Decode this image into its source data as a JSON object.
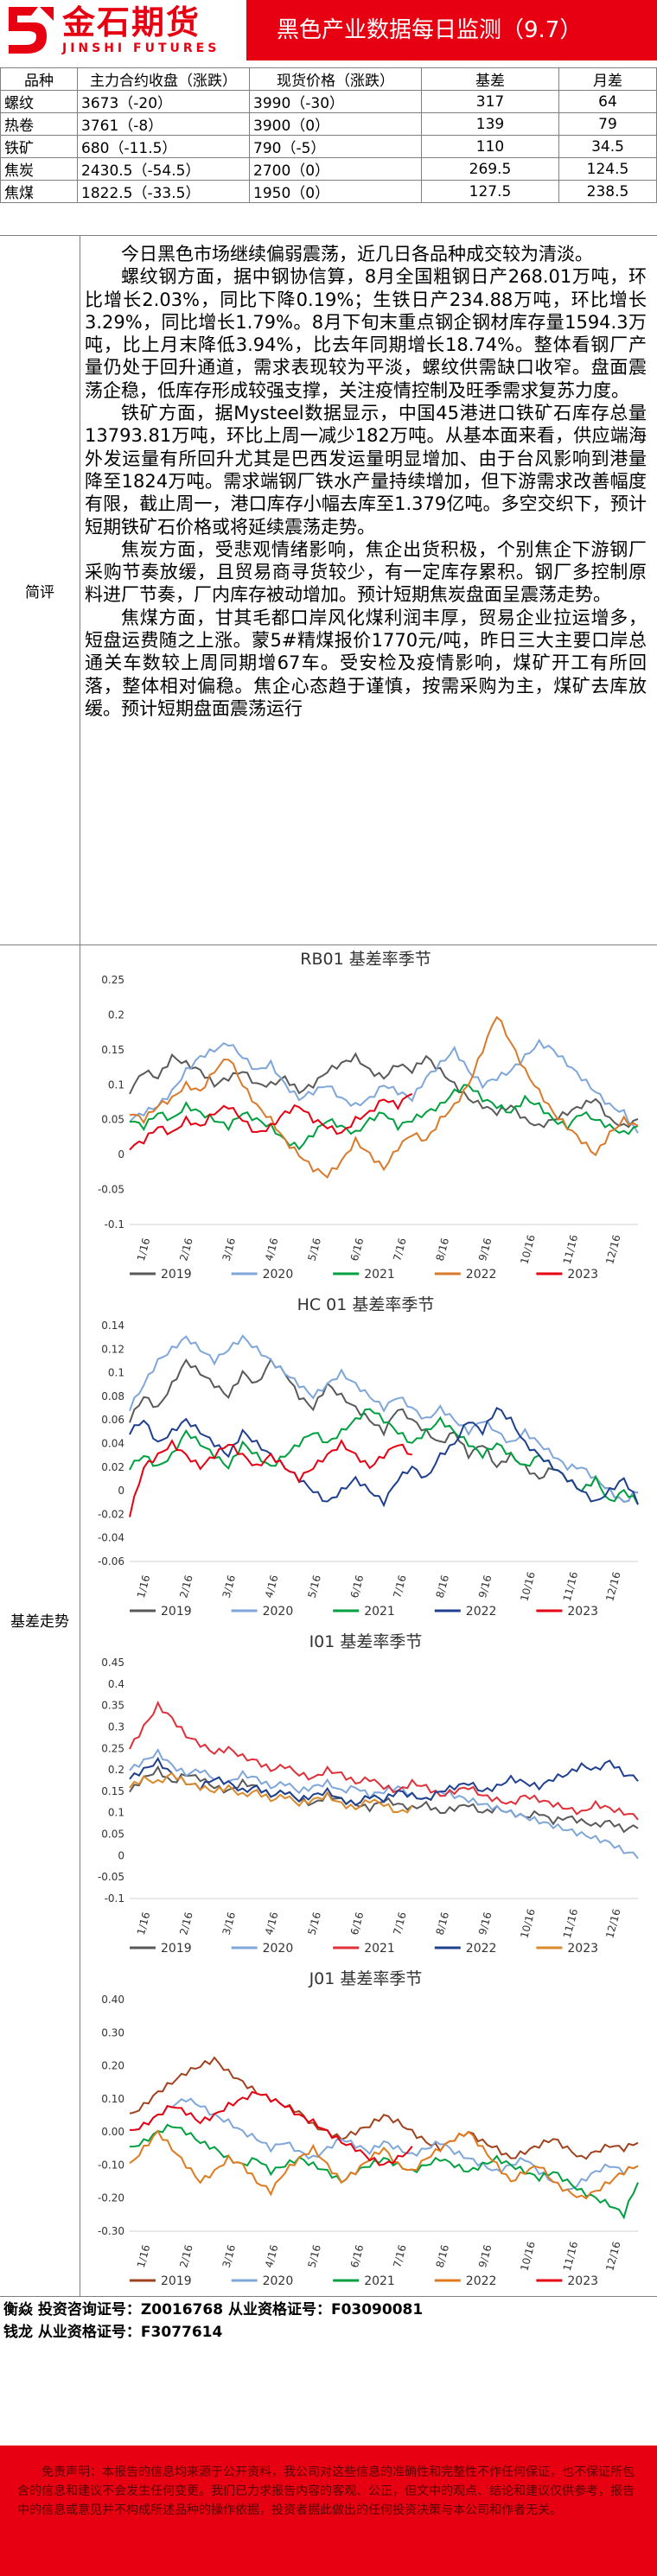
{
  "header": {
    "logo_cn": "金石期货",
    "logo_en": "JINSHI FUTURES",
    "title": "黑色产业数据每日监测（9.7）",
    "brand_color": "#e60012"
  },
  "price_table": {
    "columns": [
      "品种",
      "主力合约收盘（涨跌）",
      "现货价格（涨跌）",
      "基差",
      "月差"
    ],
    "rows": [
      {
        "name": "螺纹",
        "close": "3673（-20）",
        "spot": "3990（-30）",
        "basis": "317",
        "spread": "64"
      },
      {
        "name": "热卷",
        "close": "3761（-8）",
        "spot": "3900（0）",
        "basis": "139",
        "spread": "79"
      },
      {
        "name": "铁矿",
        "close": "680（-11.5）",
        "spot": "790（-5）",
        "basis": "110",
        "spread": "34.5"
      },
      {
        "name": "焦炭",
        "close": "2430.5（-54.5）",
        "spot": "2700（0）",
        "basis": "269.5",
        "spread": "124.5"
      },
      {
        "name": "焦煤",
        "close": "1822.5（-33.5）",
        "spot": "1950（0）",
        "basis": "127.5",
        "spread": "238.5"
      }
    ]
  },
  "commentary": {
    "label": "简评",
    "paragraphs": [
      "今日黑色市场继续偏弱震荡，近几日各品种成交较为清淡。",
      "螺纹钢方面，据中钢协信算，8月全国粗钢日产268.01万吨，环比增长2.03%，同比下降0.19%；生铁日产234.88万吨，环比增长3.29%，同比增长1.79%。8月下旬末重点钢企钢材库存量1594.3万吨，比上月末降低3.94%，比去年同期增长18.74%。整体看钢厂产量仍处于回升通道，需求表现较为平淡，螺纹供需缺口收窄。盘面震荡企稳，低库存形成较强支撑，关注疫情控制及旺季需求复苏力度。",
      "铁矿方面，据Mysteel数据显示，中国45港进口铁矿石库存总量13793.81万吨，环比上周一减少182万吨。从基本面来看，供应端海外发运量有所回升尤其是巴西发运量明显增加、由于台风影响到港量降至1824万吨。需求端钢厂铁水产量持续增加，但下游需求改善幅度有限，截止周一，港口库存小幅去库至1.379亿吨。多空交织下，预计短期铁矿石价格或将延续震荡走势。",
      "焦炭方面，受悲观情绪影响，焦企出货积极，个别焦企下游钢厂采购节奏放缓，且贸易商寻货较少，有一定库存累积。钢厂多控制原料进厂节奏，厂内库存被动增加。预计短期焦炭盘面呈震荡走势。",
      "焦煤方面，甘其毛都口岸风化煤利润丰厚，贸易企业拉运增多，短盘运费随之上涨。蒙5#精煤报价1770元/吨，昨日三大主要口岸总通关车数较上周同期增67车。受安检及疫情影响，煤矿开工有所回落，整体相对偏稳。焦企心态趋于谨慎，按需采购为主，煤矿去库放缓。预计短期盘面震荡运行"
    ]
  },
  "basis_section": {
    "label": "基差走势"
  },
  "chart_data": [
    {
      "type": "line",
      "title": "RB01 基差率季节",
      "x_ticks": [
        "1/16",
        "2/16",
        "3/16",
        "4/16",
        "5/16",
        "6/16",
        "7/16",
        "8/16",
        "9/16",
        "10/16",
        "11/16",
        "12/16"
      ],
      "ylim": [
        -0.1,
        0.25
      ],
      "y_ticks": [
        "0.25",
        "0.2",
        "0.15",
        "0.1",
        "0.05",
        "0",
        "-0.05",
        "-0.1"
      ],
      "series": [
        {
          "name": "2019",
          "color": "#595959",
          "values": [
            0.09,
            0.12,
            0.11,
            0.14,
            0.13,
            0.12,
            0.1,
            0.11,
            0.12,
            0.1,
            0.1,
            0.11,
            0.09,
            0.1,
            0.12,
            0.13,
            0.14,
            0.12,
            0.11,
            0.13,
            0.12,
            0.14,
            0.12,
            0.1,
            0.08,
            0.07,
            0.06,
            0.07,
            0.05,
            0.04,
            0.05,
            0.06,
            0.07,
            0.08,
            0.05,
            0.04,
            0.05
          ]
        },
        {
          "name": "2020",
          "color": "#7fa6d9",
          "values": [
            0.05,
            0.06,
            0.07,
            0.09,
            0.12,
            0.14,
            0.15,
            0.16,
            0.14,
            0.12,
            0.13,
            0.1,
            0.08,
            0.09,
            0.1,
            0.08,
            0.07,
            0.08,
            0.1,
            0.09,
            0.08,
            0.11,
            0.13,
            0.15,
            0.12,
            0.1,
            0.11,
            0.12,
            0.14,
            0.16,
            0.15,
            0.13,
            0.11,
            0.09,
            0.07,
            0.06,
            0.03
          ]
        },
        {
          "name": "2021",
          "color": "#00a040",
          "values": [
            0.05,
            0.04,
            0.06,
            0.05,
            0.07,
            0.06,
            0.05,
            0.04,
            0.06,
            0.05,
            0.04,
            0.02,
            0.01,
            0.03,
            0.05,
            0.04,
            0.03,
            0.05,
            0.06,
            0.04,
            0.05,
            0.06,
            0.07,
            0.09,
            0.1,
            0.08,
            0.07,
            0.06,
            0.08,
            0.07,
            0.05,
            0.04,
            0.06,
            0.05,
            0.04,
            0.03,
            0.04
          ]
        },
        {
          "name": "2022",
          "color": "#d97a2b",
          "values": [
            0.06,
            0.05,
            0.07,
            0.08,
            0.1,
            0.09,
            0.12,
            0.14,
            0.1,
            0.07,
            0.05,
            0.02,
            0.0,
            -0.02,
            -0.03,
            -0.01,
            0.02,
            0.0,
            -0.02,
            0.01,
            0.03,
            0.02,
            0.05,
            0.07,
            0.1,
            0.15,
            0.2,
            0.16,
            0.12,
            0.09,
            0.06,
            0.04,
            0.02,
            0.0,
            0.03,
            0.05,
            0.04
          ]
        },
        {
          "name": "2023",
          "color": "#e60012",
          "values": [
            0.01,
            0.02,
            0.04,
            0.03,
            0.05,
            0.04,
            0.06,
            0.07,
            0.05,
            0.03,
            0.04,
            0.06,
            0.07,
            0.05,
            0.04,
            0.03,
            0.05,
            0.06,
            0.08,
            0.07,
            0.09
          ]
        }
      ]
    },
    {
      "type": "line",
      "title": "HC 01 基差率季节",
      "x_ticks": [
        "1/16",
        "2/16",
        "3/16",
        "4/16",
        "5/16",
        "6/16",
        "7/16",
        "8/16",
        "9/16",
        "10/16",
        "11/16",
        "12/16"
      ],
      "ylim": [
        -0.06,
        0.14
      ],
      "y_ticks": [
        "0.14",
        "0.12",
        "0.1",
        "0.08",
        "0.06",
        "0.04",
        "0.02",
        "0",
        "-0.02",
        "-0.04",
        "-0.06"
      ],
      "series": [
        {
          "name": "2019",
          "color": "#595959",
          "values": [
            0.06,
            0.08,
            0.07,
            0.09,
            0.11,
            0.1,
            0.09,
            0.08,
            0.1,
            0.09,
            0.11,
            0.1,
            0.08,
            0.07,
            0.09,
            0.08,
            0.07,
            0.06,
            0.05,
            0.07,
            0.06,
            0.05,
            0.04,
            0.05,
            0.03,
            0.04,
            0.02,
            0.03,
            0.02,
            0.01,
            0.02,
            0.01,
            0.0,
            0.01,
            0.0,
            -0.01,
            0.0
          ]
        },
        {
          "name": "2020",
          "color": "#7fa6d9",
          "values": [
            0.07,
            0.09,
            0.11,
            0.12,
            0.13,
            0.12,
            0.11,
            0.12,
            0.13,
            0.12,
            0.11,
            0.1,
            0.09,
            0.08,
            0.09,
            0.1,
            0.09,
            0.08,
            0.07,
            0.08,
            0.07,
            0.06,
            0.07,
            0.06,
            0.05,
            0.06,
            0.05,
            0.04,
            0.05,
            0.04,
            0.03,
            0.02,
            0.02,
            0.01,
            0.0,
            -0.01,
            0.0
          ]
        },
        {
          "name": "2021",
          "color": "#00a040",
          "values": [
            0.02,
            0.03,
            0.02,
            0.03,
            0.05,
            0.04,
            0.03,
            0.02,
            0.04,
            0.03,
            0.02,
            0.03,
            0.04,
            0.05,
            0.04,
            0.05,
            0.06,
            0.07,
            0.06,
            0.05,
            0.04,
            0.05,
            0.06,
            0.05,
            0.04,
            0.03,
            0.04,
            0.03,
            0.02,
            0.03,
            0.02,
            0.01,
            0.0,
            0.01,
            -0.01,
            0.0,
            -0.01
          ]
        },
        {
          "name": "2022",
          "color": "#1f3f8f",
          "values": [
            0.05,
            0.06,
            0.04,
            0.05,
            0.06,
            0.05,
            0.04,
            0.03,
            0.05,
            0.04,
            0.03,
            0.02,
            0.01,
            0.0,
            -0.01,
            0.0,
            0.01,
            0.0,
            -0.01,
            0.01,
            0.02,
            0.01,
            0.03,
            0.04,
            0.06,
            0.05,
            0.07,
            0.06,
            0.04,
            0.03,
            0.02,
            0.01,
            0.0,
            -0.01,
            0.0,
            0.01,
            -0.01
          ]
        },
        {
          "name": "2023",
          "color": "#e60012",
          "values": [
            -0.02,
            0.02,
            0.03,
            0.04,
            0.03,
            0.02,
            0.03,
            0.04,
            0.03,
            0.02,
            0.03,
            0.02,
            0.01,
            0.02,
            0.03,
            0.04,
            0.03,
            0.02,
            0.03,
            0.04,
            0.03
          ]
        }
      ]
    },
    {
      "type": "line",
      "title": "I01 基差率季节",
      "x_ticks": [
        "1/16",
        "2/16",
        "3/16",
        "4/16",
        "5/16",
        "6/16",
        "7/16",
        "8/16",
        "9/16",
        "10/16",
        "11/16",
        "12/16"
      ],
      "ylim": [
        -0.1,
        0.45
      ],
      "y_ticks": [
        "0.45",
        "0.4",
        "0.35",
        "0.3",
        "0.25",
        "0.2",
        "0.15",
        "0.1",
        "0.05",
        "0",
        "-0.05",
        "-0.1"
      ],
      "series": [
        {
          "name": "2019",
          "color": "#595959",
          "values": [
            0.15,
            0.18,
            0.2,
            0.17,
            0.19,
            0.18,
            0.16,
            0.15,
            0.17,
            0.16,
            0.14,
            0.15,
            0.13,
            0.12,
            0.14,
            0.13,
            0.12,
            0.11,
            0.13,
            0.12,
            0.11,
            0.12,
            0.1,
            0.11,
            0.12,
            0.1,
            0.11,
            0.1,
            0.09,
            0.1,
            0.08,
            0.09,
            0.08,
            0.07,
            0.08,
            0.06,
            0.07
          ]
        },
        {
          "name": "2020",
          "color": "#7fa6d9",
          "values": [
            0.2,
            0.22,
            0.24,
            0.21,
            0.19,
            0.2,
            0.18,
            0.17,
            0.19,
            0.18,
            0.16,
            0.17,
            0.15,
            0.16,
            0.17,
            0.15,
            0.16,
            0.14,
            0.15,
            0.16,
            0.14,
            0.13,
            0.15,
            0.14,
            0.13,
            0.12,
            0.11,
            0.1,
            0.09,
            0.08,
            0.07,
            0.06,
            0.05,
            0.04,
            0.03,
            0.01,
            0.0
          ]
        },
        {
          "name": "2021",
          "color": "#e0303a",
          "values": [
            0.25,
            0.3,
            0.35,
            0.32,
            0.28,
            0.26,
            0.24,
            0.25,
            0.23,
            0.22,
            0.2,
            0.21,
            0.19,
            0.18,
            0.2,
            0.19,
            0.17,
            0.18,
            0.16,
            0.15,
            0.17,
            0.16,
            0.14,
            0.15,
            0.16,
            0.14,
            0.13,
            0.12,
            0.14,
            0.13,
            0.12,
            0.11,
            0.1,
            0.12,
            0.11,
            0.1,
            0.09
          ]
        },
        {
          "name": "2022",
          "color": "#1f3f8f",
          "values": [
            0.18,
            0.2,
            0.22,
            0.19,
            0.17,
            0.16,
            0.18,
            0.17,
            0.15,
            0.16,
            0.14,
            0.15,
            0.13,
            0.14,
            0.15,
            0.13,
            0.12,
            0.14,
            0.13,
            0.15,
            0.14,
            0.13,
            0.15,
            0.16,
            0.17,
            0.15,
            0.16,
            0.18,
            0.17,
            0.16,
            0.18,
            0.19,
            0.21,
            0.2,
            0.22,
            0.19,
            0.18
          ]
        },
        {
          "name": "2023",
          "color": "#d98a2b",
          "values": [
            0.16,
            0.18,
            0.17,
            0.19,
            0.17,
            0.16,
            0.15,
            0.16,
            0.14,
            0.15,
            0.13,
            0.14,
            0.12,
            0.13,
            0.14,
            0.12,
            0.11,
            0.13,
            0.12,
            0.1,
            0.11
          ]
        }
      ]
    },
    {
      "type": "line",
      "title": "J01 基差率季节",
      "x_ticks": [
        "1/16",
        "2/16",
        "3/16",
        "4/16",
        "5/16",
        "6/16",
        "7/16",
        "8/16",
        "9/16",
        "10/16",
        "11/16",
        "12/16"
      ],
      "ylim": [
        -0.3,
        0.4
      ],
      "y_ticks": [
        "0.40",
        "0.30",
        "0.20",
        "0.10",
        "0.00",
        "-0.10",
        "-0.20",
        "-0.30"
      ],
      "series": [
        {
          "name": "2019",
          "color": "#a0421e",
          "values": [
            0.05,
            0.08,
            0.12,
            0.15,
            0.18,
            0.2,
            0.22,
            0.18,
            0.15,
            0.12,
            0.1,
            0.08,
            0.06,
            0.02,
            0.0,
            -0.02,
            0.0,
            0.02,
            0.05,
            0.03,
            0.0,
            -0.03,
            -0.05,
            -0.02,
            0.0,
            -0.03,
            -0.05,
            -0.08,
            -0.06,
            -0.04,
            -0.02,
            -0.05,
            -0.08,
            -0.06,
            -0.04,
            -0.05,
            -0.03
          ]
        },
        {
          "name": "2020",
          "color": "#7fa6d9",
          "values": [
            0.0,
            0.02,
            0.05,
            0.08,
            0.1,
            0.08,
            0.05,
            0.03,
            0.0,
            -0.02,
            -0.05,
            -0.03,
            -0.06,
            -0.08,
            -0.05,
            -0.02,
            -0.04,
            -0.06,
            -0.03,
            -0.05,
            -0.07,
            -0.05,
            -0.03,
            -0.06,
            -0.08,
            -0.1,
            -0.12,
            -0.1,
            -0.08,
            -0.12,
            -0.15,
            -0.18,
            -0.15,
            -0.12,
            -0.1,
            -0.12,
            -0.1
          ]
        },
        {
          "name": "2021",
          "color": "#00a040",
          "values": [
            -0.05,
            -0.03,
            0.0,
            0.02,
            0.0,
            -0.03,
            -0.05,
            -0.08,
            -0.1,
            -0.08,
            -0.12,
            -0.1,
            -0.08,
            -0.1,
            -0.12,
            -0.15,
            -0.12,
            -0.1,
            -0.08,
            -0.1,
            -0.12,
            -0.1,
            -0.08,
            -0.1,
            -0.12,
            -0.1,
            -0.08,
            -0.1,
            -0.12,
            -0.14,
            -0.12,
            -0.15,
            -0.18,
            -0.2,
            -0.22,
            -0.25,
            -0.15
          ]
        },
        {
          "name": "2022",
          "color": "#e07a1f",
          "values": [
            -0.1,
            -0.05,
            0.0,
            -0.05,
            -0.1,
            -0.15,
            -0.12,
            -0.08,
            -0.1,
            -0.15,
            -0.18,
            -0.12,
            -0.08,
            -0.05,
            -0.1,
            -0.15,
            -0.12,
            -0.08,
            -0.05,
            -0.1,
            -0.12,
            -0.08,
            -0.05,
            -0.02,
            0.0,
            -0.05,
            -0.1,
            -0.15,
            -0.12,
            -0.1,
            -0.15,
            -0.18,
            -0.2,
            -0.18,
            -0.15,
            -0.12,
            -0.1
          ]
        },
        {
          "name": "2023",
          "color": "#e60012",
          "values": [
            0.0,
            0.02,
            0.05,
            0.08,
            0.06,
            0.03,
            0.05,
            0.08,
            0.1,
            0.12,
            0.1,
            0.08,
            0.05,
            0.03,
            0.0,
            -0.03,
            -0.05,
            -0.08,
            -0.1,
            -0.08,
            -0.05
          ]
        }
      ]
    }
  ],
  "footer": {
    "analyst1": "衡焱 投资咨询证号：Z0016768 从业资格证号：F03090081",
    "analyst2": "钱龙 从业资格证号：F3077614",
    "disclaimer": "免责声明：本报告的信息均来源于公开资料，我公司对这些信息的准确性和完整性不作任何保证，也不保证所包含的信息和建议不会发生任何变更。我们已力求报告内容的客观、公正，但文中的观点、结论和建议仅供参考，报告中的信息或意见并不构成所述品种的操作依据，投资者据此做出的任何投资决策与本公司和作者无关。"
  }
}
